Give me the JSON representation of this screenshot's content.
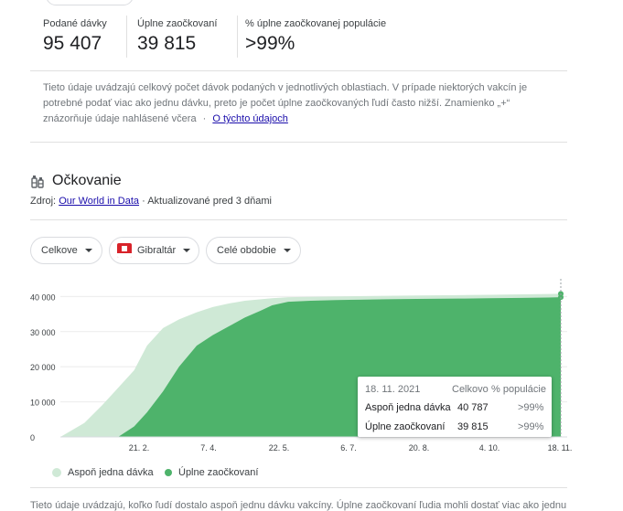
{
  "stats": [
    {
      "label": "Podané dávky",
      "value": "95 407"
    },
    {
      "label": "Úplne zaočkovaní",
      "value": "39 815"
    },
    {
      "label": "% úplne zaočkovanej populácie",
      "value": ">99%"
    }
  ],
  "note": {
    "text": "Tieto údaje uvádzajú celkový počet dávok podaných v jednotlivých oblastiach. V prípade niektorých vakcín je potrebné podať viac ako jednu dávku, preto je počet úplne zaočkovaných ľudí často nižší. Znamienko „+“ znázorňuje údaje nahlásené včera",
    "sep": "·",
    "link": "O týchto údajoch"
  },
  "section": {
    "title": "Očkovanie",
    "source_prefix": "Zdroj:",
    "source_link": "Our World in Data",
    "updated": "· Aktualizované pred 3 dňami"
  },
  "filters": {
    "metric": "Celkove",
    "region": "Gibraltár",
    "period": "Celé obdobie"
  },
  "tooltip": {
    "date": "18. 11. 2021",
    "col_total": "Celkovo",
    "col_pct": "% populácie",
    "rows": [
      {
        "label": "Aspoň jedna dávka",
        "total": "40 787",
        "pct": ">99%"
      },
      {
        "label": "Úplne zaočkovaní",
        "total": "39 815",
        "pct": ">99%"
      }
    ]
  },
  "legend": [
    "Aspoň jedna dávka",
    "Úplne zaočkovaní"
  ],
  "bottom_note": "Tieto údaje uvádzajú, koľko ľudí dostalo aspoň jednu dávku vakcíny. Úplne zaočkovaní ľudia mohli dostať viac ako jednu",
  "colors": {
    "full": "#4eb36b",
    "one_dose": "#cfe9d6",
    "accent": "#34a853"
  },
  "chart_data": {
    "type": "area",
    "ylim": [
      0,
      44000
    ],
    "yticks": [
      0,
      10000,
      20000,
      30000,
      40000
    ],
    "ytick_labels": [
      "0",
      "10 000",
      "20 000",
      "30 000",
      "40 000"
    ],
    "xtick_labels": [
      "21. 2.",
      "7. 4.",
      "22. 5.",
      "6. 7.",
      "20. 8.",
      "4. 10.",
      "18. 11."
    ],
    "x": [
      "2021-01-10",
      "2021-01-25",
      "2021-02-05",
      "2021-02-15",
      "2021-02-25",
      "2021-03-05",
      "2021-03-15",
      "2021-03-25",
      "2021-04-05",
      "2021-04-15",
      "2021-04-25",
      "2021-05-05",
      "2021-05-15",
      "2021-05-22",
      "2021-06-01",
      "2021-06-15",
      "2021-07-01",
      "2021-07-15",
      "2021-08-01",
      "2021-08-20",
      "2021-09-15",
      "2021-10-04",
      "2021-10-25",
      "2021-11-10",
      "2021-11-18"
    ],
    "series": [
      {
        "name": "Aspoň jedna dávka",
        "values": [
          0,
          4000,
          9000,
          14000,
          19000,
          26000,
          31000,
          33500,
          35500,
          37000,
          38000,
          38800,
          39200,
          39500,
          39800,
          39900,
          40000,
          40100,
          40200,
          40300,
          40400,
          40500,
          40600,
          40700,
          40787
        ]
      },
      {
        "name": "Úplne zaočkovaní",
        "values": [
          0,
          0,
          0,
          0,
          3000,
          7000,
          13000,
          20000,
          26000,
          29000,
          31500,
          34000,
          36000,
          37500,
          38500,
          38800,
          39000,
          39100,
          39200,
          39300,
          39400,
          39500,
          39600,
          39700,
          39815
        ]
      }
    ]
  }
}
